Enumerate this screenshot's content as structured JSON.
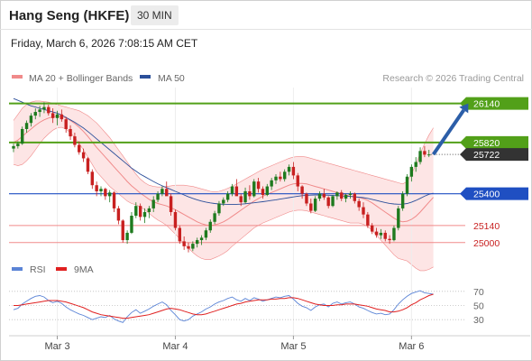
{
  "header": {
    "title": "Hang Seng (HKFE)",
    "timeframe": "30 MIN",
    "datetime": "Friday, March 6, 2026 7:08:15 AM CET",
    "copyright": "Research © 2026 Trading Central"
  },
  "colors": {
    "bb_line": "#f08a8a",
    "bb_fill": "#fde1e1",
    "ma50": "#2c4f9a",
    "resistance": "#52a019",
    "support_pivot": "#1f4fc2",
    "support": "#f08a8a",
    "candle_up": "#1e7a1e",
    "candle_down": "#c82020",
    "rsi": "#5b84d6",
    "rsi_ma": "#e02020",
    "arrow": "#2c5ea8",
    "last_price_bg": "#333333"
  },
  "chart_data": [
    {
      "type": "candlestick",
      "title": "Hang Seng (HKFE)",
      "interval": "30 MIN",
      "legend": [
        "MA 20 + Bollinger Bands",
        "MA 50"
      ],
      "legend_position": "top-left",
      "x_ticks": [
        {
          "label": "Mar 3",
          "index": 10
        },
        {
          "label": "Mar 4",
          "index": 37
        },
        {
          "label": "Mar 5",
          "index": 64
        },
        {
          "label": "Mar 6",
          "index": 91
        }
      ],
      "ylim": [
        24880,
        26270
      ],
      "price_levels": [
        {
          "value": 26140,
          "label": "26140",
          "kind": "resistance"
        },
        {
          "value": 25820,
          "label": "25820",
          "kind": "resistance"
        },
        {
          "value": 25400,
          "label": "25400",
          "kind": "pivot"
        },
        {
          "value": 25140,
          "label": "25140",
          "kind": "support"
        },
        {
          "value": 25000,
          "label": "25000",
          "kind": "support"
        }
      ],
      "last_price": {
        "value": 25722,
        "label": "25722"
      },
      "target_arrow": {
        "from_index": 96,
        "from": 25722,
        "to_index": 104,
        "to": 26140
      },
      "candles_ohlc": [
        [
          25770,
          25810,
          25740,
          25790
        ],
        [
          25790,
          25830,
          25770,
          25810
        ],
        [
          25810,
          25950,
          25800,
          25930
        ],
        [
          25930,
          26000,
          25900,
          25980
        ],
        [
          25980,
          26060,
          25950,
          26040
        ],
        [
          26040,
          26100,
          26010,
          26070
        ],
        [
          26070,
          26120,
          26030,
          26090
        ],
        [
          26090,
          26150,
          26060,
          26110
        ],
        [
          26110,
          26130,
          26040,
          26060
        ],
        [
          26060,
          26100,
          25980,
          26020
        ],
        [
          26020,
          26080,
          25960,
          26050
        ],
        [
          26050,
          26090,
          25990,
          26010
        ],
        [
          26010,
          26030,
          25900,
          25930
        ],
        [
          25930,
          25960,
          25840,
          25870
        ],
        [
          25870,
          25900,
          25780,
          25800
        ],
        [
          25800,
          25830,
          25720,
          25740
        ],
        [
          25740,
          25770,
          25660,
          25690
        ],
        [
          25690,
          25700,
          25560,
          25580
        ],
        [
          25580,
          25600,
          25440,
          25470
        ],
        [
          25470,
          25500,
          25380,
          25420
        ],
        [
          25420,
          25460,
          25380,
          25440
        ],
        [
          25440,
          25450,
          25350,
          25380
        ],
        [
          25380,
          25430,
          25330,
          25410
        ],
        [
          25410,
          25420,
          25250,
          25280
        ],
        [
          25280,
          25300,
          25150,
          25180
        ],
        [
          25180,
          25190,
          25000,
          25020
        ],
        [
          25020,
          25100,
          24990,
          25080
        ],
        [
          25080,
          25250,
          25070,
          25220
        ],
        [
          25220,
          25330,
          25200,
          25300
        ],
        [
          25300,
          25320,
          25180,
          25210
        ],
        [
          25210,
          25280,
          25160,
          25250
        ],
        [
          25250,
          25300,
          25200,
          25280
        ],
        [
          25280,
          25380,
          25250,
          25350
        ],
        [
          25350,
          25420,
          25330,
          25400
        ],
        [
          25400,
          25460,
          25380,
          25440
        ],
        [
          25440,
          25500,
          25400,
          25380
        ],
        [
          25380,
          25400,
          25220,
          25250
        ],
        [
          25250,
          25270,
          25100,
          25120
        ],
        [
          25120,
          25140,
          24990,
          25010
        ],
        [
          25010,
          25050,
          24940,
          24970
        ],
        [
          24970,
          25000,
          24920,
          24950
        ],
        [
          24950,
          25010,
          24930,
          24990
        ],
        [
          24990,
          25040,
          24960,
          25020
        ],
        [
          25020,
          25060,
          24980,
          25040
        ],
        [
          25040,
          25120,
          25020,
          25100
        ],
        [
          25100,
          25190,
          25080,
          25170
        ],
        [
          25170,
          25260,
          25150,
          25240
        ],
        [
          25240,
          25340,
          25220,
          25320
        ],
        [
          25320,
          25370,
          25300,
          25350
        ],
        [
          25350,
          25420,
          25330,
          25400
        ],
        [
          25400,
          25480,
          25380,
          25460
        ],
        [
          25460,
          25520,
          25430,
          25380
        ],
        [
          25380,
          25400,
          25300,
          25330
        ],
        [
          25330,
          25450,
          25320,
          25420
        ],
        [
          25420,
          25470,
          25350,
          25380
        ],
        [
          25380,
          25520,
          25370,
          25500
        ],
        [
          25500,
          25530,
          25410,
          25440
        ],
        [
          25440,
          25460,
          25360,
          25390
        ],
        [
          25390,
          25480,
          25380,
          25460
        ],
        [
          25460,
          25530,
          25430,
          25510
        ],
        [
          25510,
          25560,
          25480,
          25540
        ],
        [
          25540,
          25580,
          25500,
          25520
        ],
        [
          25520,
          25600,
          25500,
          25580
        ],
        [
          25580,
          25640,
          25550,
          25620
        ],
        [
          25620,
          25660,
          25520,
          25550
        ],
        [
          25550,
          25570,
          25420,
          25460
        ],
        [
          25460,
          25470,
          25360,
          25400
        ],
        [
          25400,
          25410,
          25300,
          25320
        ],
        [
          25320,
          25360,
          25240,
          25260
        ],
        [
          25260,
          25380,
          25250,
          25360
        ],
        [
          25360,
          25420,
          25340,
          25400
        ],
        [
          25400,
          25440,
          25350,
          25370
        ],
        [
          25370,
          25380,
          25280,
          25300
        ],
        [
          25300,
          25390,
          25290,
          25380
        ],
        [
          25380,
          25420,
          25350,
          25410
        ],
        [
          25410,
          25430,
          25340,
          25360
        ],
        [
          25360,
          25400,
          25330,
          25390
        ],
        [
          25390,
          25420,
          25360,
          25400
        ],
        [
          25400,
          25410,
          25320,
          25340
        ],
        [
          25340,
          25360,
          25260,
          25290
        ],
        [
          25290,
          25330,
          25200,
          25230
        ],
        [
          25230,
          25250,
          25120,
          25140
        ],
        [
          25140,
          25160,
          25070,
          25090
        ],
        [
          25090,
          25120,
          25040,
          25060
        ],
        [
          25060,
          25110,
          25030,
          25080
        ],
        [
          25080,
          25100,
          25010,
          25030
        ],
        [
          25030,
          25060,
          24990,
          25020
        ],
        [
          25020,
          25140,
          25010,
          25120
        ],
        [
          25120,
          25300,
          25100,
          25280
        ],
        [
          25280,
          25420,
          25260,
          25400
        ],
        [
          25400,
          25560,
          25380,
          25540
        ],
        [
          25540,
          25640,
          25500,
          25620
        ],
        [
          25620,
          25700,
          25580,
          25660
        ],
        [
          25660,
          25780,
          25640,
          25750
        ],
        [
          25750,
          25790,
          25700,
          25720
        ],
        [
          25720,
          25760,
          25700,
          25722
        ]
      ],
      "ma20": [
        25820,
        25840,
        25870,
        25900,
        25930,
        25960,
        25985,
        26005,
        26020,
        26030,
        26035,
        26032,
        26020,
        26000,
        25975,
        25945,
        25910,
        25870,
        25825,
        25780,
        25740,
        25700,
        25660,
        25620,
        25580,
        25540,
        25500,
        25465,
        25435,
        25405,
        25380,
        25355,
        25335,
        25320,
        25310,
        25300,
        25285,
        25270,
        25250,
        25230,
        25210,
        25190,
        25170,
        25155,
        25145,
        25140,
        25145,
        25155,
        25170,
        25190,
        25215,
        25240,
        25265,
        25290,
        25315,
        25340,
        25360,
        25380,
        25395,
        25410,
        25425,
        25440,
        25455,
        25470,
        25480,
        25485,
        25485,
        25480,
        25470,
        25460,
        25450,
        25440,
        25430,
        25420,
        25410,
        25400,
        25390,
        25380,
        25375,
        25370,
        25360,
        25345,
        25325,
        25300,
        25275,
        25250,
        25225,
        25200,
        25180,
        25170,
        25175,
        25190,
        25215,
        25250,
        25290,
        25330,
        25370
      ],
      "bb_upper": [
        26000,
        26050,
        26100,
        26130,
        26150,
        26160,
        26160,
        26155,
        26150,
        26140,
        26130,
        26120,
        26110,
        26100,
        26090,
        26080,
        26060,
        26040,
        26010,
        25980,
        25940,
        25900,
        25860,
        25810,
        25760,
        25710,
        25660,
        25610,
        25560,
        25520,
        25490,
        25470,
        25460,
        25455,
        25455,
        25460,
        25465,
        25470,
        25470,
        25470,
        25465,
        25460,
        25450,
        25440,
        25430,
        25420,
        25415,
        25420,
        25430,
        25445,
        25460,
        25480,
        25500,
        25520,
        25540,
        25560,
        25580,
        25600,
        25615,
        25630,
        25645,
        25660,
        25675,
        25690,
        25700,
        25705,
        25705,
        25700,
        25690,
        25680,
        25670,
        25660,
        25650,
        25640,
        25630,
        25620,
        25610,
        25600,
        25590,
        25580,
        25570,
        25560,
        25550,
        25540,
        25530,
        25520,
        25510,
        25500,
        25490,
        25480,
        25500,
        25560,
        25640,
        25730,
        25810,
        25880,
        25940
      ],
      "bb_lower": [
        25640,
        25630,
        25640,
        25670,
        25710,
        25760,
        25810,
        25855,
        25890,
        25920,
        25940,
        25944,
        25930,
        25900,
        25860,
        25810,
        25760,
        25700,
        25640,
        25580,
        25540,
        25500,
        25460,
        25430,
        25400,
        25370,
        25340,
        25320,
        25310,
        25290,
        25270,
        25240,
        25210,
        25185,
        25165,
        25140,
        25105,
        25070,
        25030,
        24990,
        24955,
        24920,
        24890,
        24870,
        24860,
        24860,
        24875,
        24890,
        24910,
        24935,
        24970,
        25000,
        25030,
        25060,
        25090,
        25120,
        25140,
        25160,
        25175,
        25190,
        25205,
        25220,
        25235,
        25250,
        25260,
        25265,
        25265,
        25260,
        25250,
        25240,
        25230,
        25220,
        25210,
        25200,
        25190,
        25180,
        25170,
        25160,
        25160,
        25160,
        25150,
        25130,
        25100,
        25060,
        25020,
        24980,
        24940,
        24900,
        24870,
        24860,
        24850,
        24820,
        24790,
        24770,
        24770,
        24780,
        24800
      ],
      "ma50": [
        26180,
        26165,
        26150,
        26135,
        26120,
        26110,
        26100,
        26090,
        26080,
        26070,
        26060,
        26045,
        26025,
        26005,
        25985,
        25962,
        25938,
        25910,
        25880,
        25850,
        25820,
        25790,
        25760,
        25730,
        25700,
        25670,
        25640,
        25610,
        25585,
        25560,
        25540,
        25520,
        25500,
        25482,
        25465,
        25450,
        25435,
        25420,
        25405,
        25390,
        25375,
        25362,
        25350,
        25340,
        25332,
        25325,
        25320,
        25316,
        25313,
        25312,
        25312,
        25313,
        25315,
        25318,
        25322,
        25326,
        25330,
        25335,
        25340,
        25345,
        25350,
        25356,
        25362,
        25368,
        25374,
        25380,
        25384,
        25387,
        25389,
        25390,
        25390,
        25389,
        25388,
        25386,
        25384,
        25382,
        25380,
        25378,
        25375,
        25372,
        25368,
        25362,
        25354,
        25345,
        25336,
        25328,
        25321,
        25316,
        25314,
        25315,
        25320,
        25330,
        25345,
        25362,
        25380,
        25395,
        25405
      ]
    },
    {
      "type": "line",
      "title": "RSI",
      "legend": [
        "RSI",
        "9MA"
      ],
      "legend_position": "top-left",
      "ylim": [
        20,
        80
      ],
      "y_ticks": [
        "70",
        "50",
        "30"
      ],
      "x_ticks": [
        "Mar 3",
        "Mar 4",
        "Mar 5",
        "Mar 6"
      ],
      "series": [
        {
          "name": "RSI",
          "values": [
            44,
            46,
            52,
            56,
            60,
            63,
            64,
            62,
            57,
            54,
            56,
            53,
            48,
            44,
            41,
            38,
            36,
            33,
            30,
            32,
            34,
            33,
            36,
            31,
            28,
            26,
            34,
            40,
            44,
            39,
            42,
            45,
            49,
            52,
            55,
            51,
            43,
            37,
            30,
            28,
            30,
            35,
            38,
            41,
            45,
            48,
            52,
            55,
            57,
            60,
            62,
            58,
            56,
            60,
            57,
            61,
            59,
            56,
            58,
            60,
            62,
            61,
            63,
            64,
            59,
            53,
            49,
            47,
            43,
            48,
            51,
            52,
            48,
            53,
            55,
            52,
            54,
            55,
            52,
            48,
            46,
            43,
            40,
            38,
            39,
            37,
            38,
            44,
            52,
            58,
            63,
            67,
            69,
            71,
            68,
            67,
            66
          ]
        },
        {
          "name": "9MA",
          "values": [
            50,
            50,
            51,
            52,
            53,
            54,
            55,
            56,
            57,
            57,
            57,
            56,
            55,
            53,
            51,
            49,
            47,
            44,
            41,
            39,
            37,
            36,
            35,
            34,
            33,
            32,
            32,
            33,
            34,
            35,
            36,
            37,
            39,
            41,
            43,
            45,
            46,
            45,
            44,
            42,
            40,
            38,
            37,
            37,
            38,
            40,
            42,
            44,
            46,
            48,
            50,
            52,
            53,
            55,
            56,
            57,
            58,
            58,
            58,
            59,
            59,
            60,
            60,
            61,
            61,
            60,
            58,
            56,
            54,
            52,
            51,
            50,
            50,
            50,
            51,
            51,
            52,
            52,
            52,
            51,
            50,
            49,
            47,
            45,
            44,
            43,
            41,
            41,
            42,
            44,
            47,
            51,
            54,
            58,
            61,
            64,
            66
          ]
        }
      ]
    }
  ]
}
